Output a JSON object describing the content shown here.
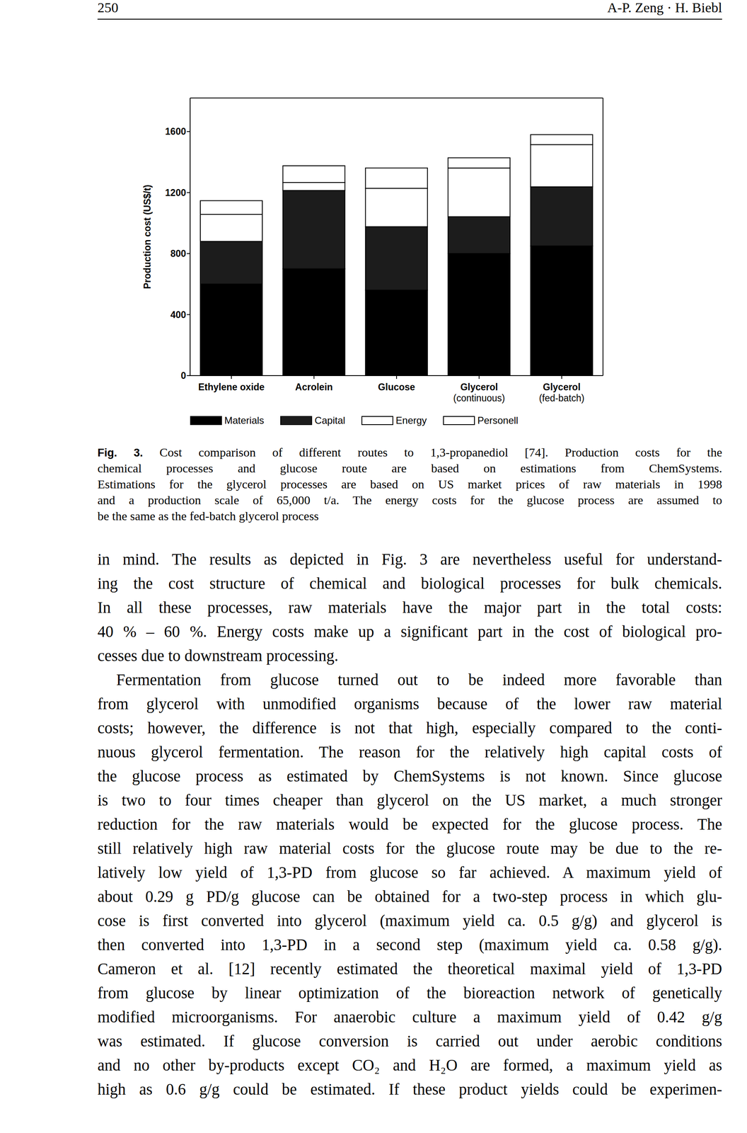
{
  "header": {
    "page": "250",
    "authors": "A-P. Zeng · H. Biebl"
  },
  "chart_data": {
    "type": "bar",
    "stacked": true,
    "categories": [
      "Ethylene oxide",
      "Acrolein",
      "Glucose",
      "Glycerol (continuous)",
      "Glycerol (fed-batch)"
    ],
    "series": [
      {
        "name": "Materials",
        "color": "#000000",
        "values": [
          600,
          700,
          560,
          800,
          850
        ]
      },
      {
        "name": "Capital",
        "color": "#1c1c1c",
        "values": [
          280,
          514,
          416,
          242,
          388
        ]
      },
      {
        "name": "Energy",
        "color": "#ffffff",
        "values": [
          177,
          52,
          252,
          319,
          276
        ]
      },
      {
        "name": "Personell",
        "color": "#ffffff",
        "values": [
          90,
          110,
          133,
          67,
          66
        ]
      }
    ],
    "y_label": "Production cost (US$/t)",
    "ylim": [
      0,
      1820
    ],
    "yticks": [
      0,
      400,
      800,
      1200,
      1600
    ],
    "grid": false,
    "legend": "bottom"
  },
  "caption": {
    "label": "Fig. 3.",
    "lines": [
      "Cost comparison of different routes to 1,3-propanediol [74]. Production costs for the",
      "chemical processes and glucose route are based on estimations from ChemSystems.",
      "Estimations for the glycerol processes are based on US market prices of raw materials in 1998",
      "and a production scale of 65,000 t/a. The energy costs for the glucose process are assumed to",
      "be the same as the fed-batch glycerol process"
    ]
  },
  "body": [
    [
      "in mind. The results as depicted in Fig. 3 are nevertheless useful for understand-",
      "ing the cost structure of chemical and biological processes for bulk chemicals.",
      "In all these processes, raw materials have the major part in the total costs:",
      "40 % – 60 %. Energy costs make up a significant part in the cost of biological pro-",
      "cesses due to downstream processing."
    ],
    [
      "Fermentation from glucose turned out to be indeed more favorable than",
      "from glycerol with unmodified organisms because of the lower raw material",
      "costs; however, the difference is not that high, especially compared to the conti-",
      "nuous glycerol fermentation. The reason for the relatively high capital costs of",
      "the glucose process as estimated by ChemSystems is not known. Since glucose",
      "is two to four times cheaper than glycerol on the US market, a much stronger",
      "reduction for the raw materials would be expected for the glucose process. The",
      "still relatively high raw material costs for the glucose route may be due to the re-",
      "latively low yield of 1,3-PD from glucose so far achieved. A maximum yield of",
      "about 0.29 g PD/g glucose can be obtained for a two-step process in which glu-",
      "cose is first converted into glycerol (maximum yield ca. 0.5 g/g) and glycerol is",
      "then converted into 1,3-PD in a second step (maximum yield ca. 0.58 g/g).",
      "Cameron et al. [12] recently estimated the theoretical maximal yield of 1,3-PD",
      "from glucose by linear optimization of the bioreaction network of genetically",
      "modified microorganisms. For anaerobic culture a maximum yield of 0.42 g/g",
      "was estimated. If glucose conversion is carried out under aerobic conditions",
      "and no other by-products except CO₂ and H₂O are formed, a maximum yield as",
      "high as 0.6 g/g could be estimated. If these product yields could be experimen-"
    ]
  ]
}
